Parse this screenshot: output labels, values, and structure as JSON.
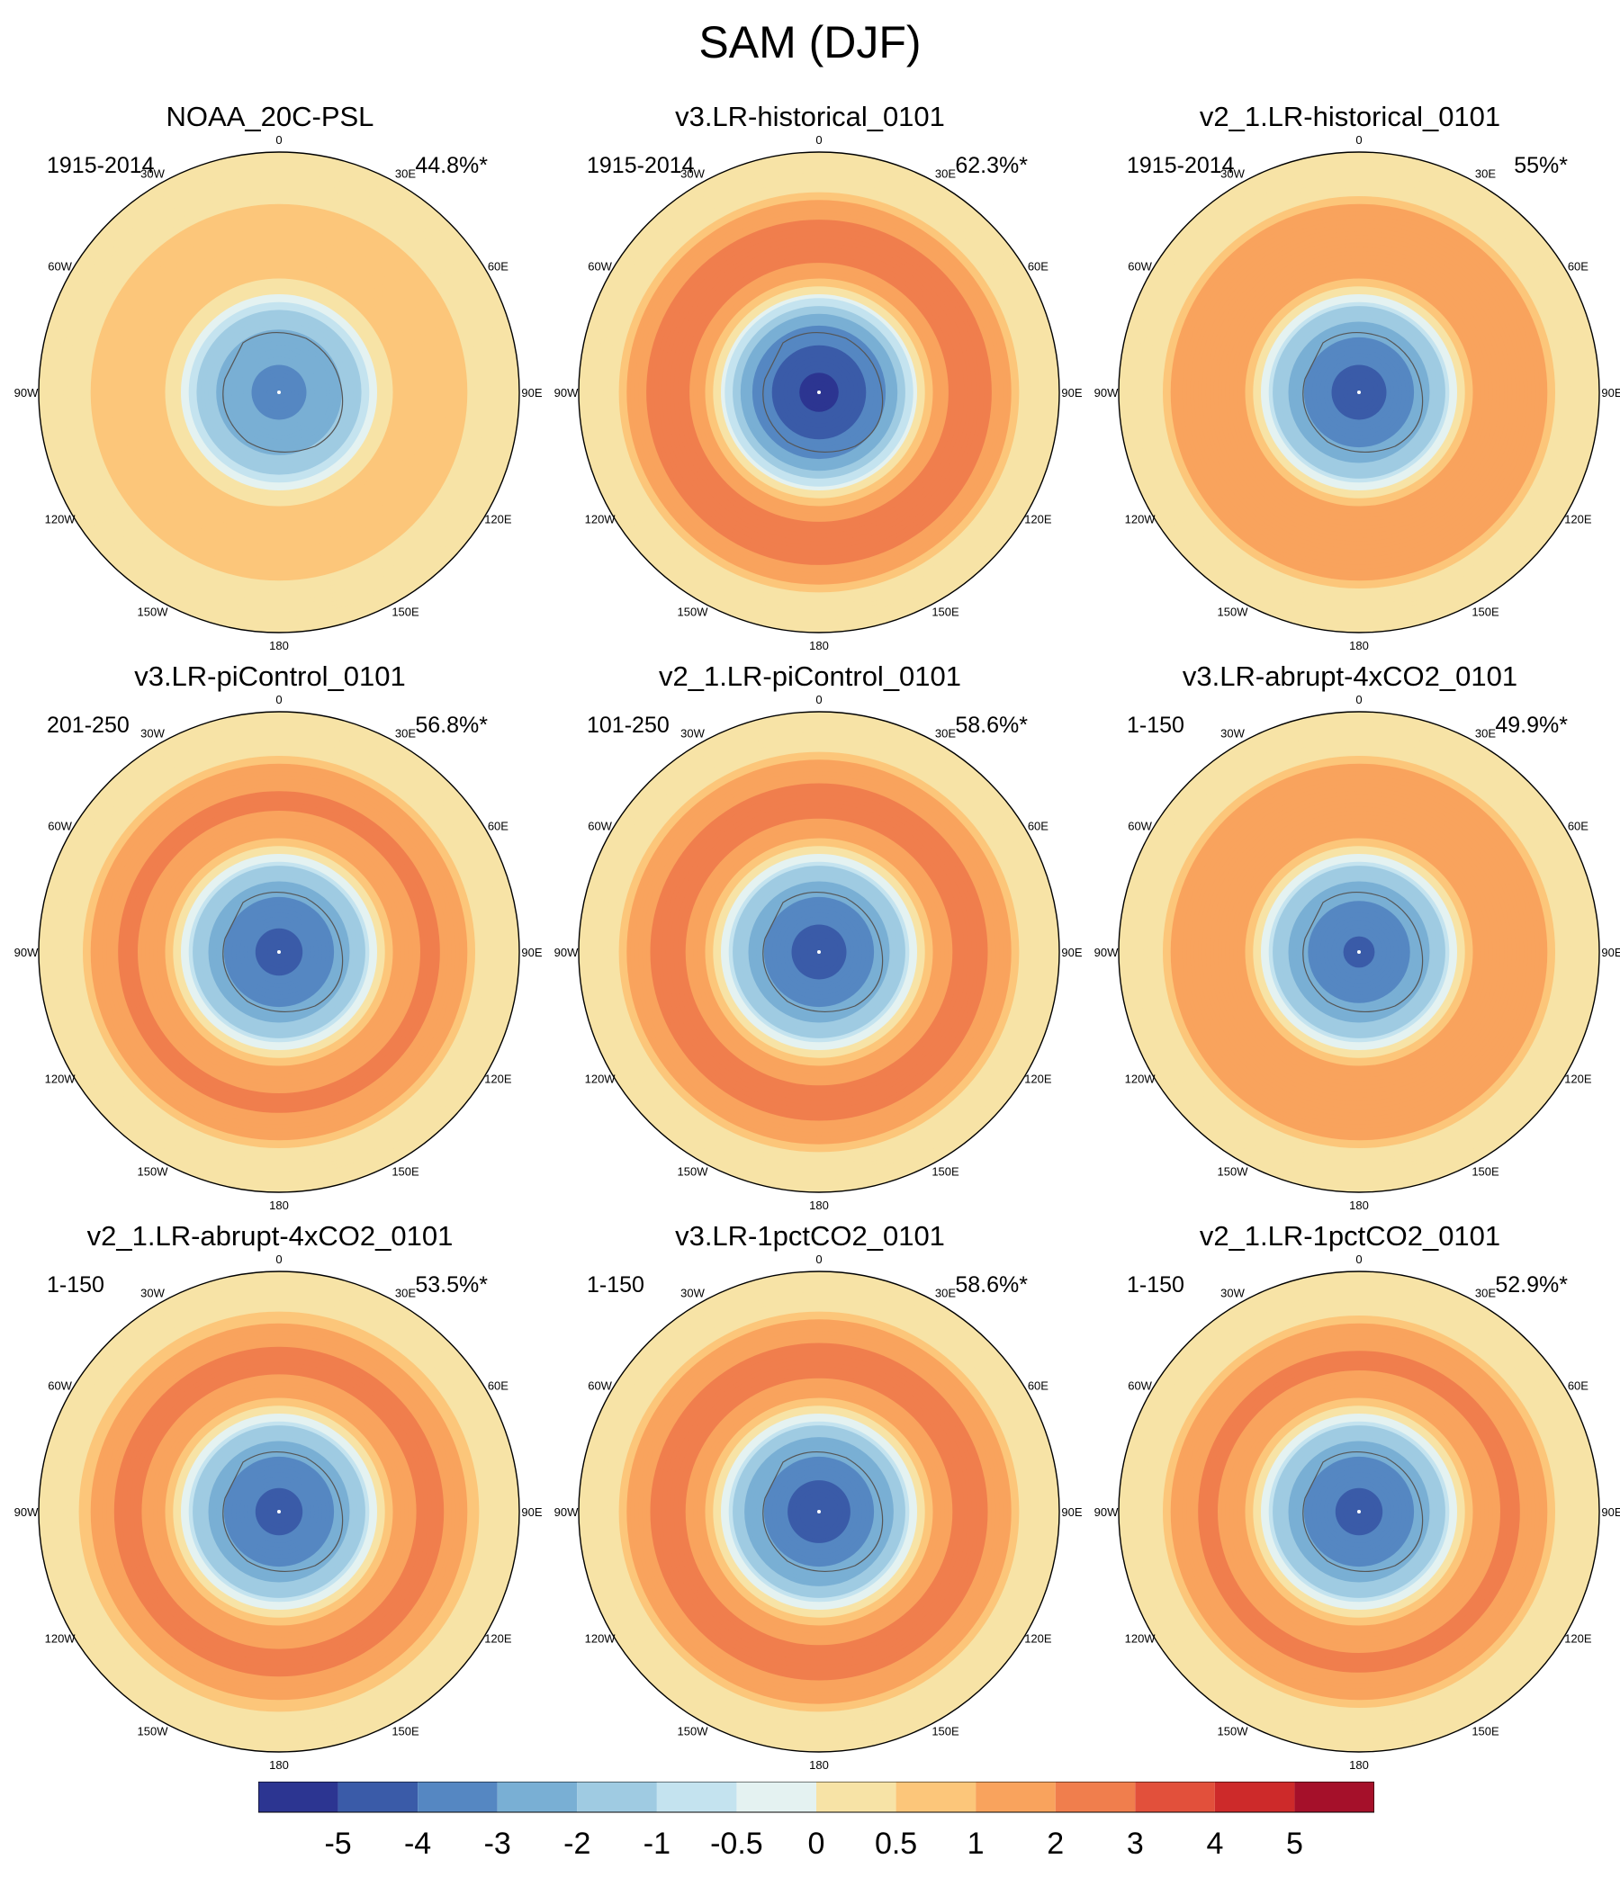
{
  "title": "SAM (DJF)",
  "chart_data": {
    "type": "heatmap",
    "projection": "south-polar-stereographic",
    "longitude_labels": [
      "0",
      "30E",
      "60E",
      "90E",
      "120E",
      "150E",
      "180",
      "150W",
      "120W",
      "90W",
      "60W",
      "30W"
    ],
    "colorbar": {
      "labels": [
        "-5",
        "-4",
        "-3",
        "-2",
        "-1",
        "-0.5",
        "0",
        "0.5",
        "1",
        "2",
        "3",
        "4",
        "5"
      ],
      "colors": [
        "#2c3591",
        "#3a5ba8",
        "#5587c2",
        "#79afd4",
        "#9fcbe2",
        "#c4e3ef",
        "#e4f2f1",
        "#f7e3a6",
        "#fcc67a",
        "#f9a35d",
        "#f07e4d",
        "#e2503b",
        "#cd2a2a",
        "#a5102a"
      ]
    },
    "panels": [
      {
        "name": "NOAA_20C-PSL",
        "period": "1915-2014",
        "variance": "44.8%*",
        "center_value": -3.2,
        "ring_value": 1.0
      },
      {
        "name": "v3.LR-historical_0101",
        "period": "1915-2014",
        "variance": "62.3%*",
        "center_value": -5.2,
        "ring_value": 2.4
      },
      {
        "name": "v2_1.LR-historical_0101",
        "period": "1915-2014",
        "variance": "55%*",
        "center_value": -4.3,
        "ring_value": 2.0
      },
      {
        "name": "v3.LR-piControl_0101",
        "period": "201-250",
        "variance": "56.8%*",
        "center_value": -4.2,
        "ring_value": 2.1
      },
      {
        "name": "v2_1.LR-piControl_0101",
        "period": "101-250",
        "variance": "58.6%*",
        "center_value": -4.3,
        "ring_value": 2.3
      },
      {
        "name": "v3.LR-abrupt-4xCO2_0101",
        "period": "1-150",
        "variance": "49.9%*",
        "center_value": -4.1,
        "ring_value": 2.0
      },
      {
        "name": "v2_1.LR-abrupt-4xCO2_0101",
        "period": "1-150",
        "variance": "53.5%*",
        "center_value": -4.2,
        "ring_value": 2.2
      },
      {
        "name": "v3.LR-1pctCO2_0101",
        "period": "1-150",
        "variance": "58.6%*",
        "center_value": -4.4,
        "ring_value": 2.3
      },
      {
        "name": "v2_1.LR-1pctCO2_0101",
        "period": "1-150",
        "variance": "52.9%*",
        "center_value": -4.2,
        "ring_value": 2.1
      }
    ]
  }
}
